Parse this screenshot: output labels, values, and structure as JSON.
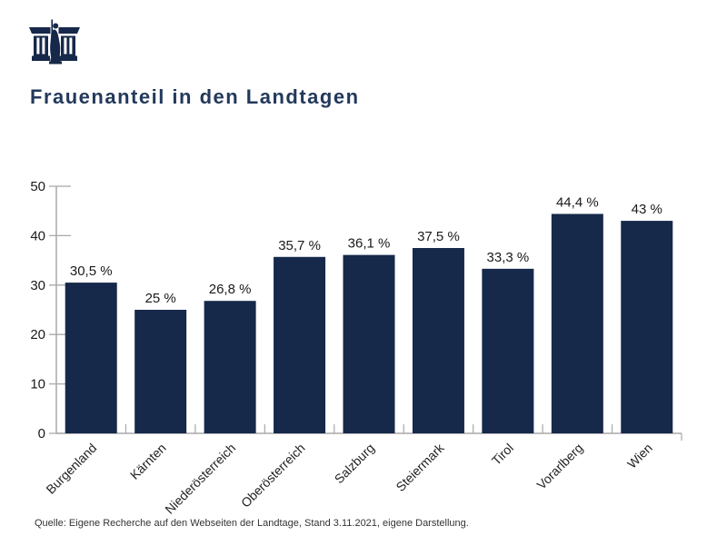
{
  "header": {
    "logo_icon": "parliament-building-icon",
    "title": "Frauenanteil in den Landtagen"
  },
  "chart_data": {
    "type": "bar",
    "title": "Frauenanteil in den Landtagen",
    "categories": [
      "Burgenland",
      "Kärnten",
      "Niederösterreich",
      "Oberösterreich",
      "Salzburg",
      "Steiermark",
      "Tirol",
      "Vorarlberg",
      "Wien"
    ],
    "values": [
      30.5,
      25,
      26.8,
      35.7,
      36.1,
      37.5,
      33.3,
      44.4,
      43
    ],
    "value_labels": [
      "30,5 %",
      "25 %",
      "26,8 %",
      "35,7 %",
      "36,1 %",
      "37,5 %",
      "33,3 %",
      "44,4 %",
      "43 %"
    ],
    "xlabel": "",
    "ylabel": "",
    "ylim": [
      0,
      50
    ],
    "yticks": [
      0,
      10,
      20,
      30,
      40,
      50
    ],
    "grid": false,
    "legend": false,
    "bar_color": "#16294a",
    "axis_color": "#a8a8a8",
    "tick_label_color": "#1a1a1a",
    "category_label_color": "#222222"
  },
  "footer": {
    "source": "Quelle: Eigene Recherche auf den Webseiten der Landtage, Stand 3.11.2021, eigene Darstellung."
  },
  "colors": {
    "brand_navy": "#16294a",
    "title_navy": "#23395c",
    "background": "#ffffff"
  }
}
